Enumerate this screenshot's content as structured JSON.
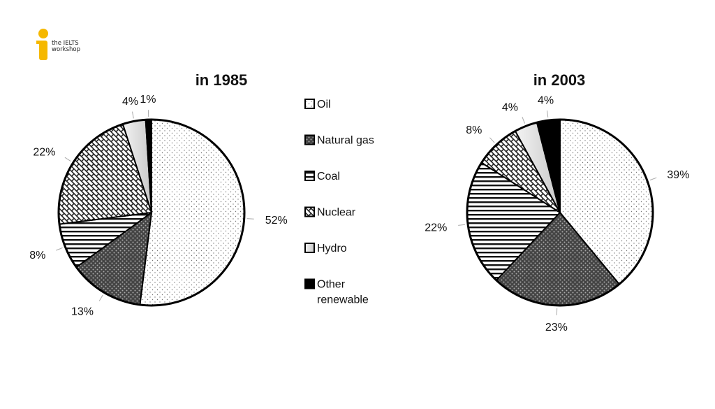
{
  "logo": {
    "line1": "the IELTS",
    "line2": "workshop",
    "color": "#f5b800"
  },
  "legend": [
    {
      "key": "oil",
      "label": "Oil"
    },
    {
      "key": "gas",
      "label": "Natural gas"
    },
    {
      "key": "coal",
      "label": "Coal"
    },
    {
      "key": "nuclear",
      "label": "Nuclear"
    },
    {
      "key": "hydro",
      "label": "Hydro"
    },
    {
      "key": "other",
      "label": "Other\nrenewable"
    }
  ],
  "chart_data": [
    {
      "type": "pie",
      "title": "in 1985",
      "categories": [
        "Oil",
        "Natural gas",
        "Coal",
        "Nuclear",
        "Hydro",
        "Other renewable"
      ],
      "values": [
        52,
        13,
        8,
        22,
        4,
        1
      ],
      "labels": [
        "52%",
        "13%",
        "8%",
        "22%",
        "4%",
        "1%"
      ]
    },
    {
      "type": "pie",
      "title": "in 2003",
      "categories": [
        "Oil",
        "Natural gas",
        "Coal",
        "Nuclear",
        "Hydro",
        "Other renewable"
      ],
      "values": [
        39,
        23,
        22,
        8,
        4,
        4
      ],
      "labels": [
        "39%",
        "23%",
        "22%",
        "8%",
        "4%",
        "4%"
      ]
    }
  ]
}
